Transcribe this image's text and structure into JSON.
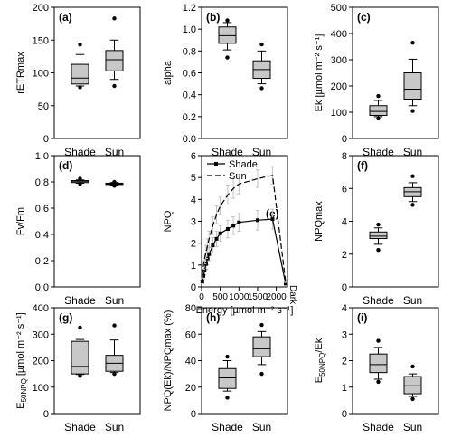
{
  "figure": {
    "background": "#ffffff",
    "box_fill": "#c8c8c8",
    "ink": "#000000",
    "error_bar_color": "#c0c0c0"
  },
  "chart_data": [
    {
      "id": "a",
      "type": "box",
      "panel_label": "(a)",
      "ylabel": "rETRmax",
      "ylim": [
        0,
        200
      ],
      "yticks": [
        0,
        50,
        100,
        150,
        200
      ],
      "categories": [
        "Shade",
        "Sun"
      ],
      "boxes": [
        {
          "category": "Shade",
          "whisker_low": 80,
          "q1": 83,
          "median": 92,
          "q3": 113,
          "whisker_high": 128,
          "outliers": [
            78,
            143
          ]
        },
        {
          "category": "Sun",
          "whisker_low": 90,
          "q1": 103,
          "median": 120,
          "q3": 134,
          "whisker_high": 150,
          "outliers": [
            80,
            183
          ]
        }
      ]
    },
    {
      "id": "b",
      "type": "box",
      "panel_label": "(b)",
      "ylabel": "alpha",
      "ylim": [
        0,
        1.2
      ],
      "yticks": [
        0.0,
        0.2,
        0.4,
        0.6,
        0.8,
        1.0,
        1.2
      ],
      "categories": [
        "Shade",
        "Sun"
      ],
      "boxes": [
        {
          "category": "Shade",
          "whisker_low": 0.81,
          "q1": 0.87,
          "median": 0.94,
          "q3": 1.02,
          "whisker_high": 1.06,
          "outliers": [
            0.74,
            1.08
          ]
        },
        {
          "category": "Sun",
          "whisker_low": 0.5,
          "q1": 0.55,
          "median": 0.63,
          "q3": 0.71,
          "whisker_high": 0.8,
          "outliers": [
            0.46,
            0.86
          ]
        }
      ]
    },
    {
      "id": "c",
      "type": "box",
      "panel_label": "(c)",
      "ylabel": "Ek [µmol m⁻² s⁻¹]",
      "ylim": [
        0,
        500
      ],
      "yticks": [
        0,
        100,
        200,
        300,
        400,
        500
      ],
      "categories": [
        "Shade",
        "Sun"
      ],
      "boxes": [
        {
          "category": "Shade",
          "whisker_low": 83,
          "q1": 88,
          "median": 103,
          "q3": 125,
          "whisker_high": 145,
          "outliers": [
            76,
            162
          ]
        },
        {
          "category": "Sun",
          "whisker_low": 125,
          "q1": 150,
          "median": 188,
          "q3": 250,
          "whisker_high": 302,
          "outliers": [
            105,
            365
          ]
        }
      ]
    },
    {
      "id": "d",
      "type": "box",
      "panel_label": "(d)",
      "ylabel": "Fv/Fm",
      "ylim": [
        0,
        1.0
      ],
      "yticks": [
        0.0,
        0.2,
        0.4,
        0.6,
        0.8,
        1.0
      ],
      "categories": [
        "Shade",
        "Sun"
      ],
      "boxes": [
        {
          "category": "Shade",
          "whisker_low": 0.79,
          "q1": 0.795,
          "median": 0.805,
          "q3": 0.81,
          "whisker_high": 0.815,
          "outliers": [
            0.785,
            0.825
          ]
        },
        {
          "category": "Sun",
          "whisker_low": 0.775,
          "q1": 0.78,
          "median": 0.785,
          "q3": 0.79,
          "whisker_high": 0.795,
          "outliers": [
            0.77,
            0.8
          ]
        }
      ]
    },
    {
      "id": "e",
      "type": "line",
      "panel_label": "(e)",
      "ylabel": "NPQ",
      "xlabel": "Energy [µmol m⁻² s⁻¹]",
      "x_extra_label": "Dark",
      "xlim": [
        0,
        2300
      ],
      "xticks": [
        0,
        500,
        1000,
        1500,
        2000
      ],
      "ylim": [
        0,
        6
      ],
      "yticks": [
        0,
        1,
        2,
        3,
        4,
        5,
        6
      ],
      "legend_position": "top-left",
      "series": [
        {
          "name": "Shade",
          "style": "solid-square-markers",
          "x": [
            20,
            50,
            80,
            120,
            160,
            200,
            300,
            400,
            500,
            700,
            850,
            1000,
            1500,
            1900,
            2250
          ],
          "y": [
            0.25,
            0.5,
            0.75,
            1.05,
            1.3,
            1.5,
            1.9,
            2.2,
            2.45,
            2.65,
            2.8,
            2.95,
            3.05,
            3.1,
            0.15
          ],
          "err": [
            0.1,
            0.15,
            0.2,
            0.25,
            0.3,
            0.3,
            0.35,
            0.35,
            0.35,
            0.4,
            0.4,
            0.4,
            0.45,
            0.45,
            0.05
          ]
        },
        {
          "name": "Sun",
          "style": "dashed",
          "x": [
            20,
            50,
            80,
            120,
            160,
            200,
            300,
            400,
            500,
            700,
            850,
            1000,
            1500,
            1900,
            2250
          ],
          "y": [
            0.55,
            1.0,
            1.3,
            1.6,
            1.9,
            2.2,
            2.8,
            3.3,
            3.7,
            4.2,
            4.5,
            4.7,
            4.95,
            5.1,
            0.25
          ],
          "err": [
            0.15,
            0.2,
            0.25,
            0.3,
            0.3,
            0.35,
            0.4,
            0.4,
            0.4,
            0.45,
            0.45,
            0.45,
            0.4,
            0.4,
            0.05
          ]
        }
      ]
    },
    {
      "id": "f",
      "type": "box",
      "panel_label": "(f)",
      "ylabel": "NPQmax",
      "ylim": [
        0,
        8
      ],
      "yticks": [
        0,
        2,
        4,
        6,
        8
      ],
      "categories": [
        "Shade",
        "Sun"
      ],
      "boxes": [
        {
          "category": "Shade",
          "whisker_low": 2.6,
          "q1": 2.95,
          "median": 3.1,
          "q3": 3.35,
          "whisker_high": 3.6,
          "outliers": [
            2.25,
            3.8
          ]
        },
        {
          "category": "Sun",
          "whisker_low": 5.2,
          "q1": 5.5,
          "median": 5.8,
          "q3": 6.05,
          "whisker_high": 6.35,
          "outliers": [
            5.0,
            6.75
          ]
        }
      ]
    },
    {
      "id": "g",
      "type": "box",
      "panel_label": "(g)",
      "ylabel": "E50NPQ [µmol m⁻² s⁻¹]",
      "ylabel_main": "E",
      "ylabel_sub": "50NPQ",
      "ylabel_rest": " [µmol m⁻² s⁻¹]",
      "ylim": [
        0,
        400
      ],
      "yticks": [
        0,
        100,
        200,
        300,
        400
      ],
      "categories": [
        "Shade",
        "Sun"
      ],
      "boxes": [
        {
          "category": "Shade",
          "whisker_low": 148,
          "q1": 150,
          "median": 178,
          "q3": 273,
          "whisker_high": 280,
          "outliers": [
            142,
            325
          ]
        },
        {
          "category": "Sun",
          "whisker_low": 155,
          "q1": 160,
          "median": 190,
          "q3": 220,
          "whisker_high": 278,
          "outliers": [
            150,
            333
          ]
        }
      ]
    },
    {
      "id": "h",
      "type": "box",
      "panel_label": "(h)",
      "ylabel": "NPQ(Ek)/NPQmax (%)",
      "ylim": [
        0,
        80
      ],
      "yticks": [
        0,
        20,
        40,
        60,
        80
      ],
      "categories": [
        "Shade",
        "Sun"
      ],
      "boxes": [
        {
          "category": "Shade",
          "whisker_low": 17,
          "q1": 19,
          "median": 27,
          "q3": 34,
          "whisker_high": 40,
          "outliers": [
            12,
            43
          ]
        },
        {
          "category": "Sun",
          "whisker_low": 37,
          "q1": 43,
          "median": 49,
          "q3": 58,
          "whisker_high": 62,
          "outliers": [
            30,
            67
          ]
        }
      ]
    },
    {
      "id": "i",
      "type": "box",
      "panel_label": "(i)",
      "ylabel": "E50NPQ/Ek",
      "ylabel_main": "E",
      "ylabel_sub": "50NPQ",
      "ylabel_rest": "/Ek",
      "ylim": [
        0,
        4
      ],
      "yticks": [
        0,
        1,
        2,
        3,
        4
      ],
      "categories": [
        "Shade",
        "Sun"
      ],
      "boxes": [
        {
          "category": "Shade",
          "whisker_low": 1.3,
          "q1": 1.55,
          "median": 1.85,
          "q3": 2.25,
          "whisker_high": 2.5,
          "outliers": [
            1.2,
            2.75
          ]
        },
        {
          "category": "Sun",
          "whisker_low": 0.65,
          "q1": 0.75,
          "median": 1.05,
          "q3": 1.4,
          "whisker_high": 1.5,
          "outliers": [
            0.55,
            1.78
          ]
        }
      ]
    }
  ]
}
